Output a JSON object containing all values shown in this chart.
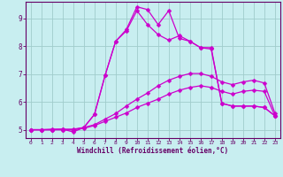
{
  "background_color": "#c8eef0",
  "grid_color": "#a0cccc",
  "line_color": "#cc00cc",
  "marker_color": "#cc00cc",
  "xlabel": "Windchill (Refroidissement éolien,°C)",
  "ylabel_ticks": [
    5,
    6,
    7,
    8,
    9
  ],
  "xlim": [
    -0.5,
    23.5
  ],
  "ylim": [
    4.7,
    9.6
  ],
  "xticks": [
    0,
    1,
    2,
    3,
    4,
    5,
    6,
    7,
    8,
    9,
    10,
    11,
    12,
    13,
    14,
    15,
    16,
    17,
    18,
    19,
    20,
    21,
    22,
    23
  ],
  "line1_x": [
    0,
    1,
    2,
    3,
    4,
    5,
    6,
    7,
    8,
    9,
    10,
    11,
    12,
    13,
    14,
    15,
    16,
    17,
    18,
    19,
    20,
    21,
    22,
    23
  ],
  "line1_y": [
    5.0,
    5.0,
    5.0,
    5.0,
    5.0,
    5.05,
    5.15,
    5.3,
    5.45,
    5.6,
    5.8,
    5.95,
    6.1,
    6.28,
    6.42,
    6.52,
    6.58,
    6.52,
    6.38,
    6.28,
    6.38,
    6.42,
    6.38,
    5.5
  ],
  "line2_x": [
    0,
    1,
    2,
    3,
    4,
    5,
    6,
    7,
    8,
    9,
    10,
    11,
    12,
    13,
    14,
    15,
    16,
    17,
    18,
    19,
    20,
    21,
    22,
    23
  ],
  "line2_y": [
    5.0,
    5.0,
    5.0,
    5.0,
    5.0,
    5.08,
    5.18,
    5.38,
    5.58,
    5.85,
    6.1,
    6.32,
    6.58,
    6.78,
    6.92,
    7.02,
    7.02,
    6.92,
    6.72,
    6.62,
    6.72,
    6.78,
    6.68,
    5.6
  ],
  "line3_x": [
    0,
    1,
    2,
    3,
    4,
    5,
    6,
    7,
    8,
    9,
    10,
    11,
    12,
    13,
    14,
    15,
    16,
    17,
    18,
    19,
    20,
    21,
    22,
    23
  ],
  "line3_y": [
    5.0,
    5.0,
    5.0,
    5.02,
    4.92,
    5.08,
    5.55,
    6.95,
    8.18,
    8.55,
    9.28,
    8.78,
    8.42,
    8.22,
    8.38,
    8.18,
    7.95,
    7.9,
    5.95,
    5.85,
    5.85,
    5.85,
    5.8,
    5.5
  ],
  "line4_x": [
    0,
    1,
    2,
    3,
    4,
    5,
    6,
    7,
    8,
    9,
    10,
    11,
    12,
    13,
    14,
    15,
    16,
    17,
    18,
    19,
    20,
    21,
    22,
    23
  ],
  "line4_y": [
    5.0,
    5.0,
    5.02,
    5.02,
    5.02,
    5.08,
    5.55,
    6.95,
    8.18,
    8.6,
    9.42,
    9.32,
    8.78,
    9.28,
    8.28,
    8.18,
    7.95,
    7.95,
    5.95,
    5.85,
    5.85,
    5.85,
    5.8,
    5.5
  ],
  "spine_color": "#660066",
  "tick_color": "#660066",
  "label_color": "#660066"
}
